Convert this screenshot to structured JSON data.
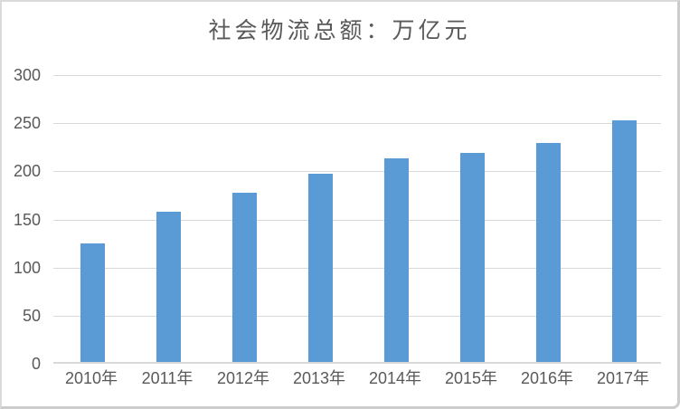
{
  "colors": {
    "bar": "#5B9BD5",
    "gridline": "#D9D9D9",
    "axis_text": "#595959",
    "title_text": "#595959",
    "border": "#CCCCCC"
  },
  "chart_data": {
    "type": "bar",
    "title": "社会物流总额：万亿元",
    "categories": [
      "2010年",
      "2011年",
      "2012年",
      "2013年",
      "2014年",
      "2015年",
      "2016年",
      "2017年"
    ],
    "values": [
      125.4,
      158.4,
      177.3,
      197.8,
      213.5,
      219.2,
      229.7,
      252.8
    ],
    "xlabel": "",
    "ylabel": "",
    "ylim": [
      0,
      300
    ],
    "yticks": [
      0,
      50,
      100,
      150,
      200,
      250,
      300
    ],
    "grid": true,
    "legend": false,
    "series_color": "#5B9BD5"
  }
}
